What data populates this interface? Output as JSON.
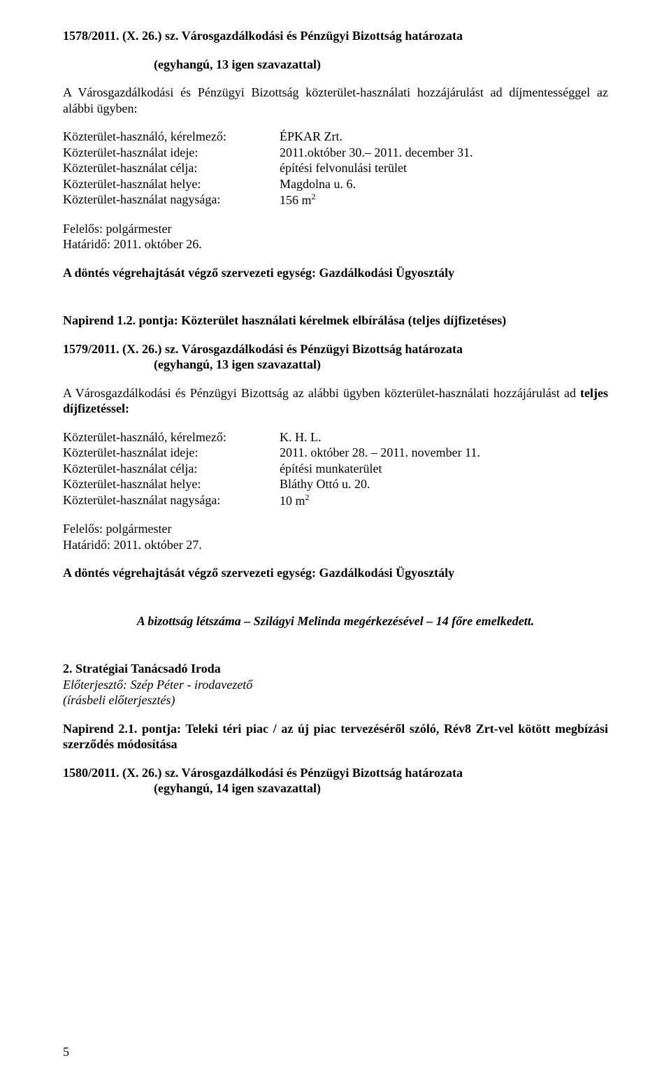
{
  "res1": {
    "number": "1578/2011. (X. 26.) sz. Városgazdálkodási és Pénzügyi Bizottság határozata",
    "vote": "(egyhangú, 13 igen szavazattal)",
    "intro": "A Városgazdálkodási és Pénzügyi Bizottság közterület-használati hozzájárulást ad díjmentességgel az alábbi ügyben:",
    "rows": {
      "r0l": "Közterület-használó, kérelmező:",
      "r0v": "ÉPKAR Zrt.",
      "r1l": "Közterület-használat ideje:",
      "r1v": "2011.október 30.– 2011. december 31.",
      "r2l": "Közterület-használat célja:",
      "r2v": "építési felvonulási terület",
      "r3l": "Közterület-használat helye:",
      "r3v": "Magdolna u. 6.",
      "r4l": "Közterület-használat nagysága:",
      "r4v_pre": "156 m",
      "r4v_sup": "2"
    },
    "felelos": "Felelős: polgármester",
    "hatarido": "Határidő: 2011. október 26.",
    "exec": "A döntés végrehajtását végző szervezeti egység: Gazdálkodási Ügyosztály"
  },
  "nap12": {
    "title": "Napirend 1.2. pontja: Közterület használati kérelmek elbírálása (teljes díjfizetéses)"
  },
  "res2": {
    "number": "1579/2011. (X. 26.) sz. Városgazdálkodási és Pénzügyi Bizottság határozata",
    "vote": "(egyhangú, 13 igen szavazattal)",
    "intro_pre": "A Városgazdálkodási és Pénzügyi Bizottság az alábbi ügyben közterület-használati hozzájárulást ad ",
    "intro_bold": "teljes díjfizetéssel:",
    "rows": {
      "r0l": "Közterület-használó, kérelmező:",
      "r0v": "K. H. L.",
      "r1l": "Közterület-használat ideje:",
      "r1v": "2011. október 28. – 2011. november 11.",
      "r2l": "Közterület-használat célja:",
      "r2v": "építési munkaterület",
      "r3l": "Közterület-használat helye:",
      "r3v": "Bláthy Ottó u. 20.",
      "r4l": "Közterület-használat nagysága:",
      "r4v_pre": "10 m",
      "r4v_sup": "2"
    },
    "felelos": "Felelős: polgármester",
    "hatarido": "Határidő: 2011. október 27.",
    "exec": "A döntés végrehajtását végző szervezeti egység: Gazdálkodási Ügyosztály"
  },
  "notice": "A bizottság létszáma – Szilágyi Melinda megérkezésével – 14 főre emelkedett.",
  "section2": {
    "title": "2. Stratégiai Tanácsadó Iroda",
    "sub1": "Előterjesztő: Szép Péter - irodavezető",
    "sub2": "(írásbeli előterjesztés)"
  },
  "nap21": {
    "title": "Napirend 2.1. pontja: Teleki téri piac / az új piac tervezéséről szóló, Rév8 Zrt-vel kötött megbízási szerződés módosítása"
  },
  "res3": {
    "number": "1580/2011. (X. 26.) sz. Városgazdálkodási és Pénzügyi Bizottság határozata",
    "vote": "(egyhangú, 14 igen szavazattal)"
  },
  "page_number": "5"
}
